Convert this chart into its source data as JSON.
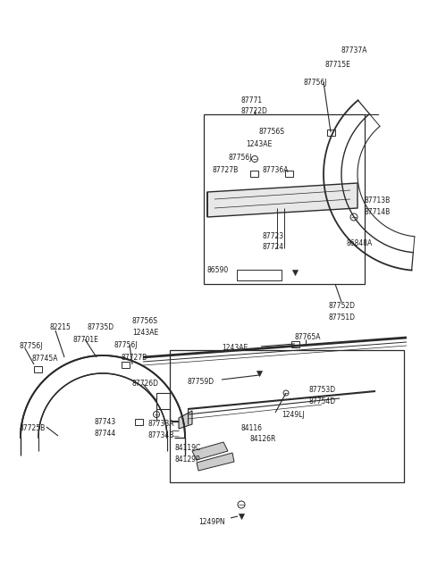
{
  "bg_color": "#ffffff",
  "line_color": "#2a2a2a",
  "text_color": "#1a1a1a",
  "fs": 5.5,
  "fig_w": 4.8,
  "fig_h": 6.55,
  "dpi": 100,
  "xlim": [
    0,
    480
  ],
  "ylim": [
    0,
    655
  ]
}
